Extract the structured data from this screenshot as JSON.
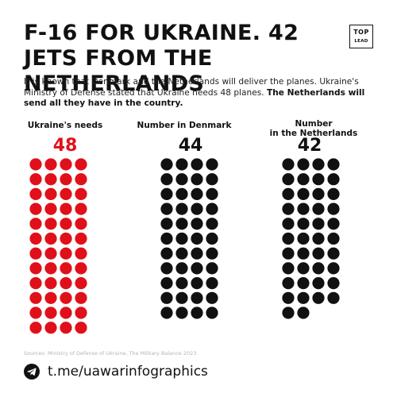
{
  "header": {
    "title": "F-16 FOR UKRAINE. 42 JETS FROM THE NETHERLANDS",
    "logo_line1": "TOP",
    "logo_line2": "LEAD"
  },
  "description": {
    "normal": "It is known that Denmark and the Netherlands will deliver the planes. Ukraine's Ministry of Defense stated that Ukraine needs 48 planes.",
    "bold": "The Netherlands will send all they have in the country."
  },
  "chart_data": {
    "type": "pictogram",
    "unit": "one circle = one jet",
    "categories": [
      "Ukraine's needs",
      "Number in Denmark",
      "Number in the Netherlands"
    ],
    "values": [
      48,
      44,
      42
    ],
    "colors": [
      "#e0101a",
      "#111111",
      "#111111"
    ]
  },
  "labels": {
    "ukraine": "Ukraine's needs",
    "denmark": "Number in Denmark",
    "netherlands_l1": "Number",
    "netherlands_l2": "in the Netherlands"
  },
  "source": "Sources: Ministry of Defense of Ukraine, The Military Balance 2023",
  "footer": {
    "link": "t.me/uawarinfographics",
    "icon": "telegram-icon"
  }
}
